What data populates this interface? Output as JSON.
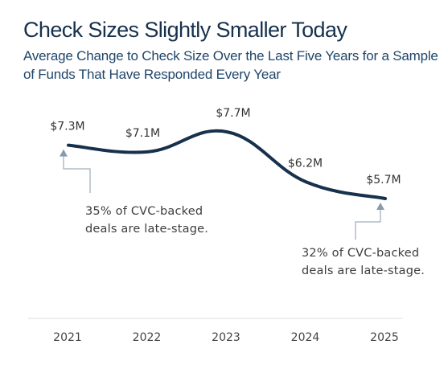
{
  "colors": {
    "line": "#17314d",
    "marker": "#8a9aac",
    "connector": "#8a9aac",
    "axis": "#dcdcdc"
  },
  "chart_data": {
    "type": "line",
    "title": "Check Sizes Slightly Smaller Today",
    "subtitle": "Average Change to Check Size Over the Last Five Years for a Sample of Funds That Have Responded Every Year",
    "x": [
      "2021",
      "2022",
      "2023",
      "2024",
      "2025"
    ],
    "series": [
      {
        "values": [
          7.3,
          7.1,
          7.7,
          6.2,
          5.7
        ],
        "value_labels": [
          "$7.3M",
          "$7.1M",
          "$7.7M",
          "$6.2M",
          "$5.7M"
        ]
      }
    ],
    "unit": "$M",
    "ylim": [
      5.7,
      7.7
    ],
    "grid": false,
    "legend": "none",
    "annotations": [
      {
        "x": "2021",
        "lines": [
          "35% of CVC-backed",
          "deals are late-stage."
        ]
      },
      {
        "x": "2025",
        "lines": [
          "32% of CVC-backed",
          "deals are late-stage."
        ]
      }
    ]
  }
}
